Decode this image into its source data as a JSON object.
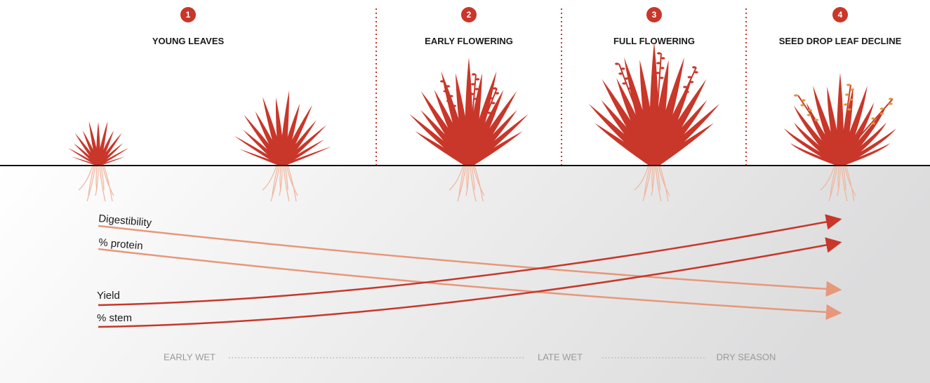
{
  "stages": [
    {
      "number": "1",
      "label": "YOUNG LEAVES"
    },
    {
      "number": "2",
      "label": "EARLY FLOWERING"
    },
    {
      "number": "3",
      "label": "FULL FLOWERING"
    },
    {
      "number": "4",
      "label": "SEED DROP LEAF DECLINE"
    }
  ],
  "curves": [
    {
      "label": "Digestibility"
    },
    {
      "label": "% protein"
    },
    {
      "label": "Yield"
    },
    {
      "label": "% stem"
    }
  ],
  "seasons": [
    "EARLY WET",
    "LATE WET",
    "DRY SEASON"
  ]
}
